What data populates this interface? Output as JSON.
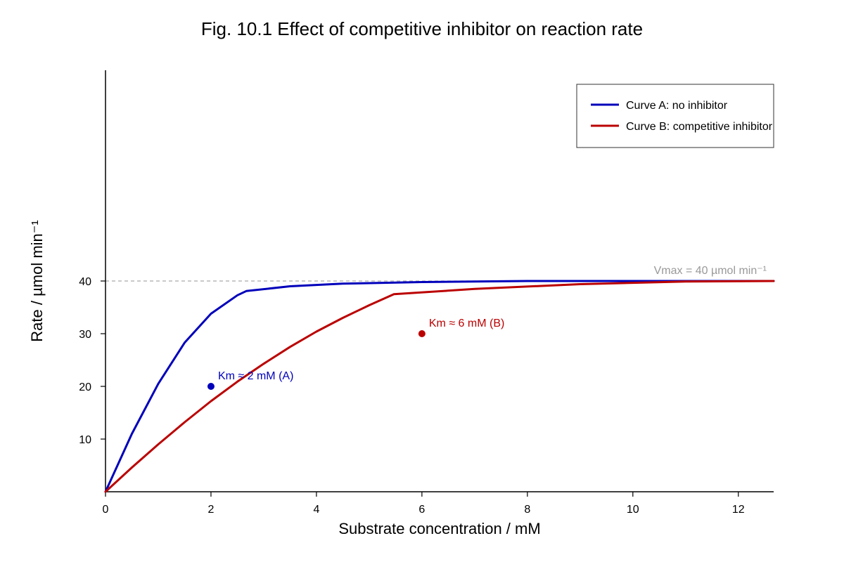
{
  "chart_data": {
    "type": "line",
    "title": "Fig. 10.1 Effect of competitive inhibitor on reaction rate",
    "xlabel": "Substrate concentration / mM",
    "ylabel": "Rate / µmol min⁻¹",
    "xlim": [
      0,
      12.67
    ],
    "ylim": [
      0,
      80
    ],
    "xticks": [
      0,
      2,
      4,
      6,
      8,
      10,
      12
    ],
    "yticks": [
      10,
      20,
      30,
      40
    ],
    "grid": false,
    "legend_position": "top-right",
    "series": [
      {
        "name": "Curve A: no inhibitor",
        "color": "#0000bb",
        "x": [
          0,
          0.5,
          1.0,
          1.5,
          2.0,
          2.5,
          2.67,
          3.5,
          4.5,
          6.0,
          8.0,
          10.0,
          12.67
        ],
        "y": [
          0,
          11.0,
          20.5,
          28.3,
          33.8,
          37.3,
          38.1,
          39.0,
          39.5,
          39.8,
          40.0,
          40.0,
          40.0
        ]
      },
      {
        "name": "Curve B: competitive inhibitor",
        "color": "#bb0000",
        "x": [
          0,
          0.5,
          1.0,
          1.5,
          2.0,
          2.5,
          3.0,
          3.5,
          4.0,
          4.5,
          5.0,
          5.47,
          7.0,
          9.0,
          11.0,
          12.67
        ],
        "y": [
          0,
          4.6,
          9.0,
          13.2,
          17.2,
          20.9,
          24.3,
          27.5,
          30.4,
          33.0,
          35.4,
          37.5,
          38.5,
          39.4,
          39.9,
          40.0
        ]
      }
    ],
    "reference_line": {
      "y": 40,
      "label": "Vmax = 40 µmol min⁻¹",
      "color": "#aaaaaa"
    },
    "annotations": [
      {
        "x": 2,
        "y": 20,
        "label": "Km ≈ 2 mM (A)",
        "color": "#0000bb"
      },
      {
        "x": 6,
        "y": 30,
        "label": "Km ≈ 6 mM (B)",
        "color": "#bb0000"
      }
    ]
  }
}
